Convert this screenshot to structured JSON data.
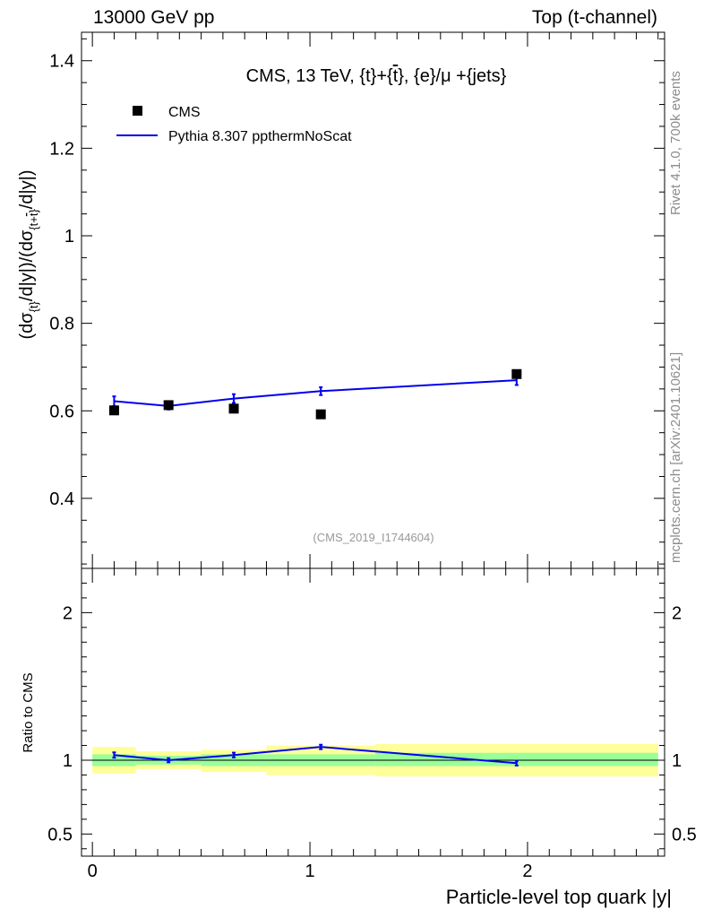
{
  "header": {
    "left": "13000 GeV pp",
    "right": "Top (t-channel)"
  },
  "side_labels": {
    "rivet": "Rivet 4.1.0,  700k events",
    "source": "mcplots.cern.ch [arXiv:2401.10621]"
  },
  "chart_data": [
    {
      "type": "scatter",
      "panel": "main",
      "title": "CMS, 13 TeV, {t}+{t̄}, {e}/μ +{jets}",
      "watermark": "(CMS_2019_I1744604)",
      "ylabel": "(dσ_{t}/d|y|)/(dσ_{t+t̄}/d|y|)",
      "xlim": [
        -0.05,
        2.63
      ],
      "ylim": [
        0.24,
        1.465
      ],
      "yticks": [
        0.4,
        0.6,
        0.8,
        1.0,
        1.2,
        1.4
      ],
      "ytick_labels": [
        "0.4",
        "0.6",
        "0.8",
        "1",
        "1.2",
        "1.4"
      ],
      "legend": {
        "placement": "top-left",
        "entries": [
          "CMS",
          "Pythia 8.307 ppthermNoScat"
        ]
      },
      "series": [
        {
          "name": "CMS",
          "style": "marker",
          "color": "#000000",
          "x": [
            0.1,
            0.35,
            0.65,
            1.05,
            1.95
          ],
          "y": [
            0.601,
            0.613,
            0.605,
            0.592,
            0.684
          ]
        },
        {
          "name": "Pythia 8.307 ppthermNoScat",
          "style": "line",
          "color": "#0000ee",
          "x": [
            0.1,
            0.35,
            0.65,
            1.05,
            1.95
          ],
          "y": [
            0.622,
            0.611,
            0.628,
            0.645,
            0.67
          ],
          "err": [
            0.011,
            0.008,
            0.01,
            0.009,
            0.011
          ]
        }
      ]
    },
    {
      "type": "line",
      "panel": "ratio",
      "ylabel": "Ratio to CMS",
      "xlabel": "Particle-level top quark |y|",
      "xlim": [
        -0.05,
        2.63
      ],
      "ylim": [
        0.35,
        2.3
      ],
      "yticks": [
        0.5,
        1.0,
        2.0
      ],
      "ytick_labels": [
        "0.5",
        "1",
        "2"
      ],
      "xticks": [
        0,
        1,
        2
      ],
      "xtick_labels": [
        "0",
        "1",
        "2"
      ],
      "bins": [
        {
          "lo": 0.0,
          "hi": 0.2,
          "band_inner": [
            0.96,
            1.04
          ],
          "band_outer": [
            0.91,
            1.09
          ]
        },
        {
          "lo": 0.2,
          "hi": 0.5,
          "band_inner": [
            0.97,
            1.03
          ],
          "band_outer": [
            0.94,
            1.06
          ]
        },
        {
          "lo": 0.5,
          "hi": 0.8,
          "band_inner": [
            0.96,
            1.04
          ],
          "band_outer": [
            0.92,
            1.07
          ]
        },
        {
          "lo": 0.8,
          "hi": 1.3,
          "band_inner": [
            0.96,
            1.04
          ],
          "band_outer": [
            0.9,
            1.1
          ]
        },
        {
          "lo": 1.3,
          "hi": 2.6,
          "band_inner": [
            0.96,
            1.05
          ],
          "band_outer": [
            0.89,
            1.11
          ]
        }
      ],
      "series": [
        {
          "name": "Pythia 8.307 ppthermNoScat / CMS",
          "color": "#0000ee",
          "x": [
            0.1,
            0.35,
            0.65,
            1.05,
            1.95
          ],
          "y": [
            1.035,
            1.0,
            1.035,
            1.09,
            0.98
          ],
          "err": [
            0.018,
            0.014,
            0.016,
            0.015,
            0.016
          ]
        }
      ]
    }
  ]
}
